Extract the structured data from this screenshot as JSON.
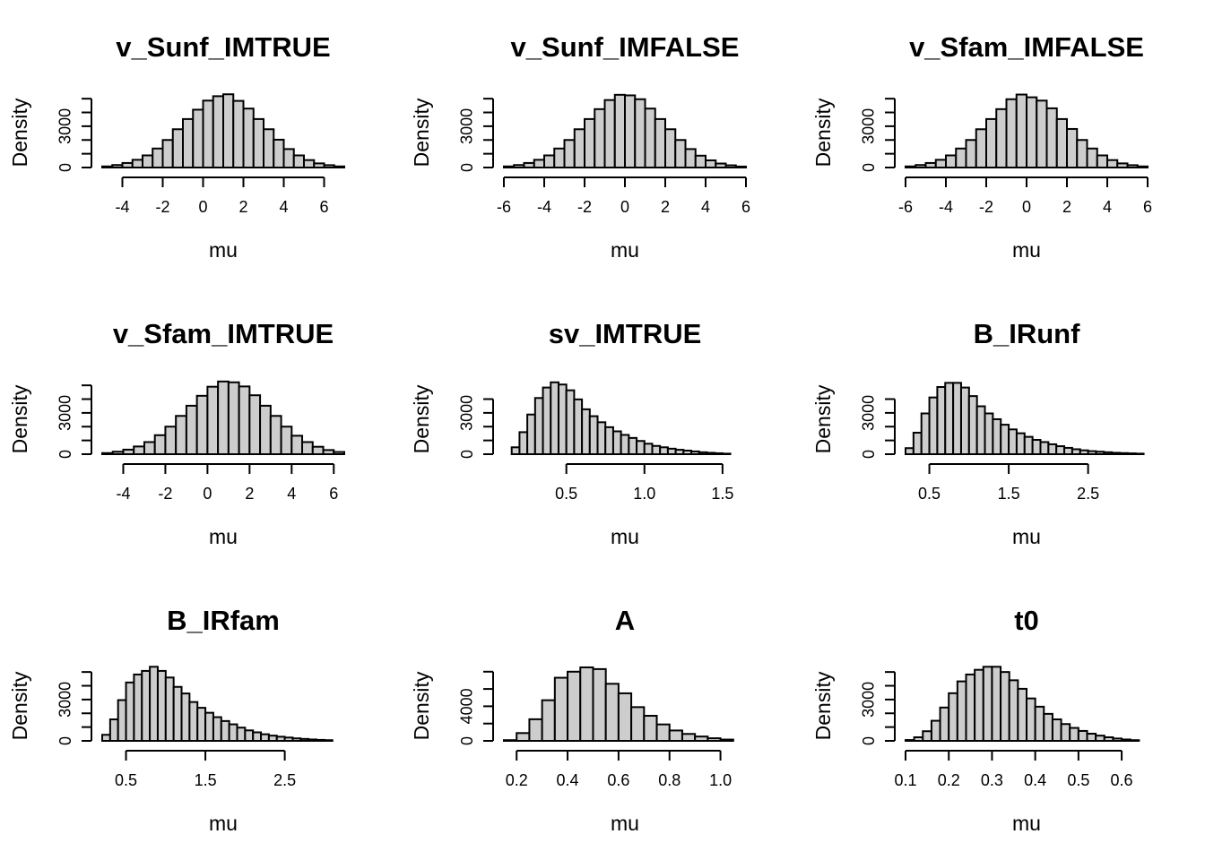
{
  "chart_data": [
    {
      "type": "bar",
      "title": "v_Sunf_IMTRUE",
      "xlabel": "mu",
      "ylabel": "Density",
      "x_ticks": [
        "-4",
        "-2",
        "0",
        "2",
        "4",
        "6"
      ],
      "x_tick_values": [
        -4,
        -2,
        0,
        2,
        4,
        6
      ],
      "y_ticks": [
        "0",
        "3000"
      ],
      "y_tick_values": [
        0,
        3000
      ],
      "y_minor_ticks": [
        1000,
        2000,
        4000,
        5000
      ],
      "xlim": [
        -5,
        7
      ],
      "ylim": [
        0,
        5400
      ],
      "bins": {
        "start": -5,
        "width": 0.5
      },
      "values": [
        80,
        180,
        330,
        560,
        880,
        1380,
        2000,
        2780,
        3520,
        4200,
        4860,
        5180,
        5320,
        4840,
        4280,
        3520,
        2780,
        2020,
        1340,
        880,
        540,
        300,
        170,
        80
      ]
    },
    {
      "type": "bar",
      "title": "v_Sunf_IMFALSE",
      "xlabel": "mu",
      "ylabel": "Density",
      "x_ticks": [
        "-6",
        "-4",
        "-2",
        "0",
        "2",
        "4",
        "6"
      ],
      "x_tick_values": [
        -6,
        -4,
        -2,
        0,
        2,
        4,
        6
      ],
      "y_ticks": [
        "0",
        "3000"
      ],
      "y_tick_values": [
        0,
        3000
      ],
      "y_minor_ticks": [
        1000,
        2000,
        4000,
        5000
      ],
      "xlim": [
        -6,
        6
      ],
      "ylim": [
        0,
        5400
      ],
      "bins": {
        "start": -6,
        "width": 0.5
      },
      "values": [
        80,
        180,
        330,
        560,
        880,
        1380,
        2000,
        2780,
        3520,
        4240,
        4900,
        5280,
        5240,
        4960,
        4280,
        3520,
        2780,
        2000,
        1340,
        860,
        520,
        290,
        160,
        70
      ]
    },
    {
      "type": "bar",
      "title": "v_Sfam_IMFALSE",
      "xlabel": "mu",
      "ylabel": "Density",
      "x_ticks": [
        "-6",
        "-4",
        "-2",
        "0",
        "2",
        "4",
        "6"
      ],
      "x_tick_values": [
        -6,
        -4,
        -2,
        0,
        2,
        4,
        6
      ],
      "y_ticks": [
        "0",
        "3000"
      ],
      "y_tick_values": [
        0,
        3000
      ],
      "y_minor_ticks": [
        1000,
        2000,
        4000,
        5000
      ],
      "xlim": [
        -6,
        6
      ],
      "ylim": [
        0,
        5400
      ],
      "bins": {
        "start": -6,
        "width": 0.5
      },
      "values": [
        80,
        180,
        330,
        560,
        880,
        1380,
        2000,
        2780,
        3520,
        4240,
        4960,
        5300,
        5100,
        4860,
        4300,
        3520,
        2800,
        2000,
        1380,
        880,
        540,
        300,
        170,
        80
      ]
    },
    {
      "type": "bar",
      "title": "v_Sfam_IMTRUE",
      "xlabel": "mu",
      "ylabel": "Density",
      "x_ticks": [
        "-4",
        "-2",
        "0",
        "2",
        "4",
        "6"
      ],
      "x_tick_values": [
        -4,
        -2,
        0,
        2,
        4,
        6
      ],
      "y_ticks": [
        "0",
        "3000"
      ],
      "y_tick_values": [
        0,
        3000
      ],
      "y_minor_ticks": [
        1000,
        2000,
        4000,
        5000
      ],
      "xlim": [
        -5,
        6.5
      ],
      "ylim": [
        0,
        5400
      ],
      "bins": {
        "start": -5,
        "width": 0.5
      },
      "values": [
        80,
        180,
        330,
        560,
        880,
        1380,
        2000,
        2780,
        3520,
        4240,
        4900,
        5280,
        5220,
        4920,
        4280,
        3520,
        2780,
        2000,
        1340,
        880,
        540,
        300,
        160
      ]
    },
    {
      "type": "bar",
      "title": "sv_IMTRUE",
      "xlabel": "mu",
      "ylabel": "Density",
      "x_ticks": [
        "0.5",
        "1.0",
        "1.5"
      ],
      "x_tick_values": [
        0.5,
        1.0,
        1.5
      ],
      "y_ticks": [
        "0",
        "3000"
      ],
      "y_tick_values": [
        0,
        3000
      ],
      "y_minor_ticks": [
        1000,
        2000,
        4000
      ],
      "xlim": [
        0.1,
        1.65
      ],
      "ylim": [
        0,
        5400
      ],
      "bins": {
        "start": 0.15,
        "width": 0.05
      },
      "values": [
        500,
        1600,
        2880,
        4080,
        4840,
        5220,
        5060,
        4640,
        3980,
        3260,
        2760,
        2320,
        1960,
        1660,
        1400,
        1180,
        960,
        760,
        600,
        500,
        400,
        320,
        260,
        200,
        140,
        100,
        70,
        40
      ]
    },
    {
      "type": "bar",
      "title": "B_IRunf",
      "xlabel": "mu",
      "ylabel": "Density",
      "x_ticks": [
        "0.5",
        "1.5",
        "2.5"
      ],
      "x_tick_values": [
        0.5,
        1.5,
        2.5
      ],
      "y_ticks": [
        "0",
        "3000"
      ],
      "y_tick_values": [
        0,
        3000
      ],
      "y_minor_ticks": [
        1000,
        2000,
        4000
      ],
      "xlim": [
        0.2,
        3.25
      ],
      "ylim": [
        0,
        5400
      ],
      "bins": {
        "start": 0.2,
        "width": 0.1
      },
      "values": [
        440,
        1560,
        2960,
        4120,
        4880,
        5180,
        5180,
        4840,
        4220,
        3480,
        2960,
        2540,
        2140,
        1800,
        1520,
        1260,
        1040,
        880,
        720,
        580,
        460,
        360,
        280,
        220,
        180,
        140,
        100,
        80,
        60,
        40
      ]
    },
    {
      "type": "bar",
      "title": "B_IRfam",
      "xlabel": "mu",
      "ylabel": "Density",
      "x_ticks": [
        "0.5",
        "1.5",
        "2.5"
      ],
      "x_tick_values": [
        0.5,
        1.5,
        2.5
      ],
      "y_ticks": [
        "0",
        "3000"
      ],
      "y_tick_values": [
        0,
        3000
      ],
      "y_minor_ticks": [
        1000,
        2000,
        4000,
        5000
      ],
      "xlim": [
        0.2,
        3.25
      ],
      "ylim": [
        0,
        5400
      ],
      "bins": {
        "start": 0.2,
        "width": 0.1
      },
      "values": [
        440,
        1560,
        2960,
        4240,
        4820,
        5080,
        5380,
        5080,
        4600,
        3920,
        3440,
        2820,
        2400,
        2040,
        1720,
        1440,
        1200,
        960,
        760,
        620,
        480,
        380,
        300,
        240,
        180,
        140,
        100,
        70,
        50
      ]
    },
    {
      "type": "bar",
      "title": "A",
      "xlabel": "mu",
      "ylabel": "Density",
      "x_ticks": [
        "0.2",
        "0.4",
        "0.6",
        "0.8",
        "1.0"
      ],
      "x_tick_values": [
        0.2,
        0.4,
        0.6,
        0.8,
        1.0
      ],
      "y_ticks": [
        "0",
        "4000"
      ],
      "y_tick_values": [
        0,
        4000
      ],
      "y_minor_ticks": [
        2000,
        6000,
        8000
      ],
      "xlim": [
        0.15,
        1.1
      ],
      "ylim": [
        0,
        8600
      ],
      "bins": {
        "start": 0.15,
        "width": 0.05
      },
      "values": [
        80,
        900,
        2500,
        4700,
        7300,
        8000,
        8500,
        8300,
        6600,
        5500,
        3900,
        2900,
        1900,
        1200,
        800,
        500,
        300,
        150
      ]
    },
    {
      "type": "bar",
      "title": "t0",
      "xlabel": "mu",
      "ylabel": "Density",
      "x_ticks": [
        "0.1",
        "0.2",
        "0.3",
        "0.4",
        "0.5",
        "0.6"
      ],
      "x_tick_values": [
        0.1,
        0.2,
        0.3,
        0.4,
        0.5,
        0.6
      ],
      "y_ticks": [
        "0",
        "3000"
      ],
      "y_tick_values": [
        0,
        3000
      ],
      "y_minor_ticks": [
        1000,
        2000,
        4000,
        5000
      ],
      "xlim": [
        0.1,
        0.66
      ],
      "ylim": [
        0,
        5400
      ],
      "bins": {
        "start": 0.1,
        "width": 0.02
      },
      "values": [
        60,
        260,
        700,
        1460,
        2420,
        3460,
        4320,
        4820,
        5160,
        5380,
        5380,
        5000,
        4400,
        3780,
        3080,
        2480,
        1960,
        1560,
        1220,
        940,
        720,
        520,
        380,
        260,
        170,
        100,
        50
      ]
    }
  ]
}
